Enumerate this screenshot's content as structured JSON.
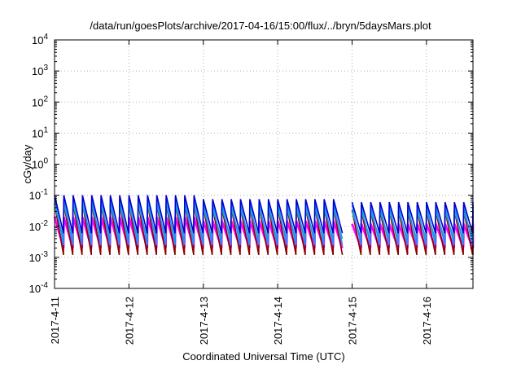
{
  "chart_data": {
    "type": "line",
    "title": "/data/run/goesPlots/archive/2017-04-16/15:00/flux/../bryn/5daysMars.plot",
    "xlabel": "Coordinated Universal Time (UTC)",
    "ylabel": "cGy/day",
    "y_scale": "log",
    "ylim": [
      0.0001,
      10000
    ],
    "x_start": "2017-04-11",
    "x_end": "2017-04-16T15:00",
    "x_tick_labels": [
      "2017-4-11",
      "2017-4-12",
      "2017-4-13",
      "2017-4-14",
      "2017-4-15",
      "2017-4-16"
    ],
    "y_ticks": [
      {
        "base": "10",
        "exp": "-4"
      },
      {
        "base": "10",
        "exp": "-3"
      },
      {
        "base": "10",
        "exp": "-2"
      },
      {
        "base": "10",
        "exp": "-1"
      },
      {
        "base": "10",
        "exp": "0"
      },
      {
        "base": "10",
        "exp": "1"
      },
      {
        "base": "10",
        "exp": "2"
      },
      {
        "base": "10",
        "exp": "3"
      },
      {
        "base": "10",
        "exp": "4"
      }
    ],
    "grid": true,
    "legend": "none",
    "series_colors": [
      "#ff00ff",
      "#8b0000",
      "#1e90ff",
      "#20b2aa",
      "#0000cd"
    ],
    "sawtooth": {
      "period_hours": 3,
      "peak_by_day": [
        0.1,
        0.1,
        0.075,
        0.075,
        0.06,
        0.06
      ],
      "trough_by_series": [
        0.002,
        0.0012,
        0.0025,
        0.004,
        0.006
      ],
      "peak_factor_by_series": [
        0.2,
        0.55,
        0.8,
        0.5,
        1.0
      ],
      "gaps": [
        [
          "2017-04-12T19:00",
          "2017-04-12T20:30"
        ],
        [
          "2017-04-14T21:00",
          "2017-04-15T00:00"
        ]
      ]
    }
  }
}
